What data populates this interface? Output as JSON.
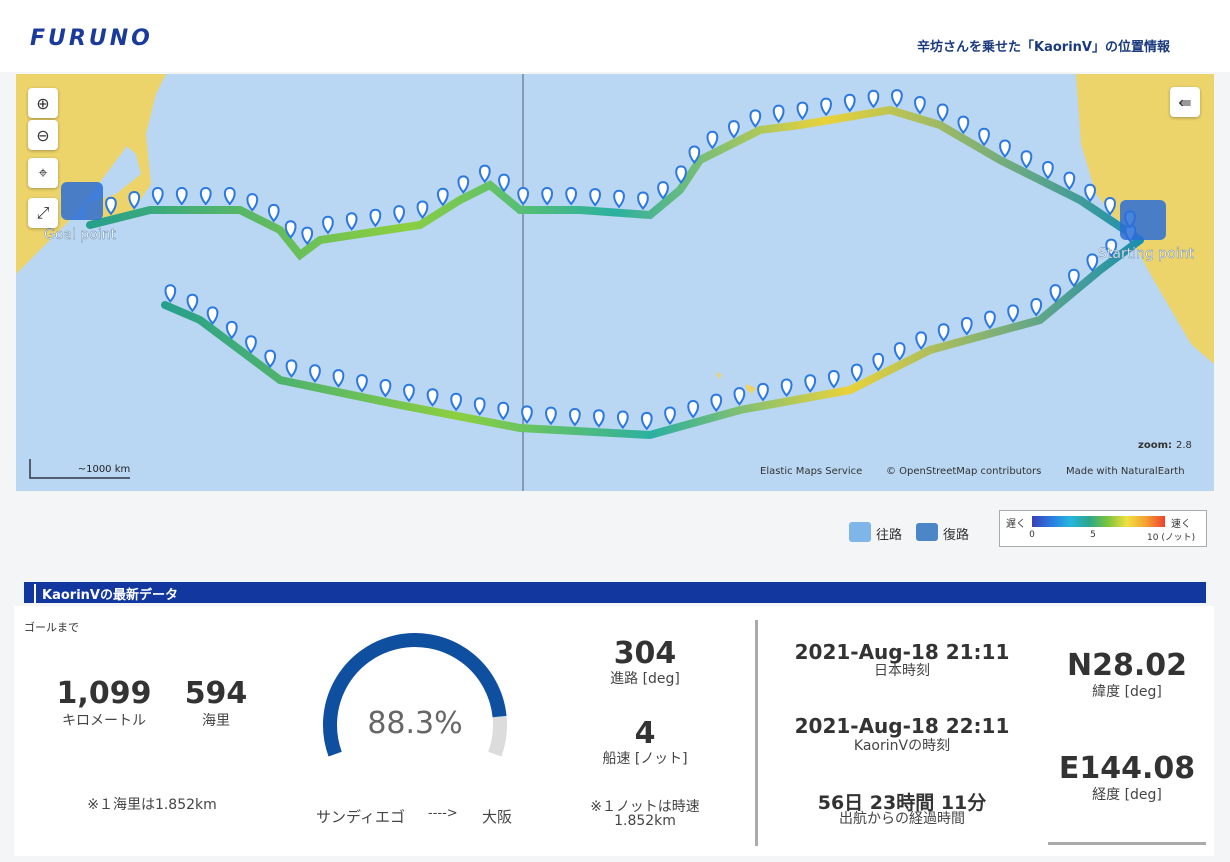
{
  "header": {
    "logo": "FURUNO",
    "title": "辛坊さんを乗せた「KaorinⅤ」の位置情報"
  },
  "map": {
    "goal_label": "Goal point",
    "start_label": "Starting point",
    "scale": "~1000 km",
    "zoom_label": "zoom:",
    "zoom": 2.8,
    "attribution": [
      "Elastic Maps Service",
      "© OpenStreetMap contributors",
      "Made with NaturalEarth"
    ]
  },
  "legend": {
    "outbound": "往路",
    "return": "復路",
    "slow": "遅く",
    "fast": "速く",
    "ticks": [
      "0",
      "5",
      "10 (ノット)"
    ]
  },
  "latest": {
    "title": "KaorinⅤの最新データ",
    "to_goal": "ゴールまで",
    "km": "1,099",
    "km_unit": "キロメートル",
    "nm": "594",
    "nm_unit": "海里",
    "nm_note": "※１海里は1.852km",
    "progress": {
      "value": 88.3,
      "label": "88.3%"
    },
    "from": "サンディエゴ",
    "arrow": "---->",
    "to": "大阪",
    "course": "304",
    "course_label": "進路 [deg]",
    "speed": "4",
    "speed_label": "船速 [ノット]",
    "knot_note": [
      "※１ノットは時速",
      "1.852km"
    ],
    "jst": "2021-Aug-18 21:11",
    "jst_label": "日本時刻",
    "local": "2021-Aug-18 22:11",
    "local_label": "KaorinⅤの時刻",
    "elapsed": "56日 23時間 11分",
    "elapsed_label": "出航からの経過時間",
    "lat": "N28.02",
    "lat_label": "緯度 [deg]",
    "lon": "E144.08",
    "lon_label": "経度 [deg]"
  }
}
